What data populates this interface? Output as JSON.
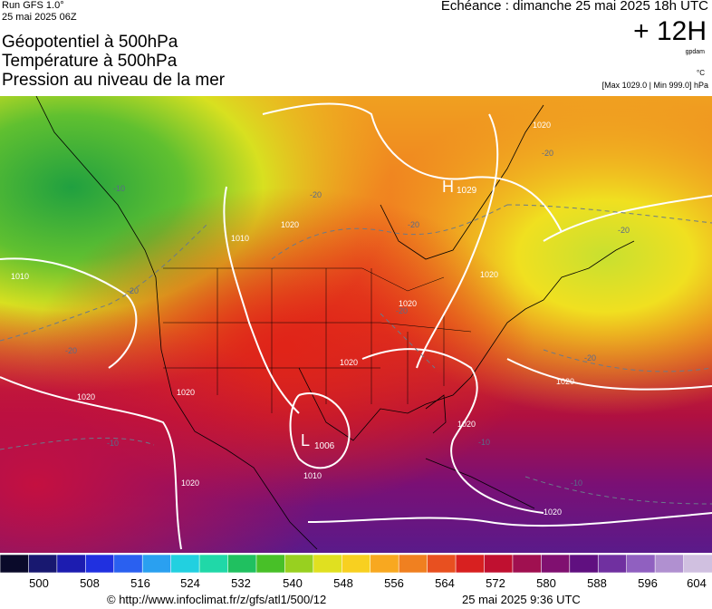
{
  "header": {
    "run": "Run GFS 1.0°",
    "run_time": "25 mai 2025 06Z",
    "titles": [
      "Géopotentiel à 500hPa",
      "Température à 500hPa",
      "Pression au niveau de la mer"
    ],
    "validity": "Echéance : dimanche 25 mai 2025 18h UTC",
    "lead": "+ 12H",
    "unit_geo": "gpdam",
    "unit_temp": "°C",
    "range": "[Max 1029.0 | Min 999.0] hPa"
  },
  "map": {
    "isobar_labels": [
      "1010",
      "1020",
      "1020",
      "1010",
      "1020",
      "1020",
      "1020",
      "1020",
      "1010",
      "1020",
      "1020",
      "1020",
      "1020",
      "1020"
    ],
    "isotherm_labels": [
      "-10",
      "-20",
      "-20",
      "-20",
      "-20",
      "-20",
      "-20",
      "-20",
      "-20",
      "-10",
      "-10",
      "-10"
    ],
    "high": {
      "symbol": "H",
      "value": "1029"
    },
    "low": {
      "symbol": "L",
      "value": "1006"
    }
  },
  "legend": {
    "ticks": [
      "500",
      "508",
      "516",
      "524",
      "532",
      "540",
      "548",
      "556",
      "564",
      "572",
      "580",
      "588",
      "596",
      "604"
    ],
    "colors": [
      "#0a0a2a",
      "#181870",
      "#1c1cb0",
      "#2030e0",
      "#2a60f0",
      "#2aa0f0",
      "#22d0e0",
      "#20d8a8",
      "#20c060",
      "#48c028",
      "#98d020",
      "#e0e020",
      "#f8d020",
      "#f8a820",
      "#f08020",
      "#e85020",
      "#d82020",
      "#c01030",
      "#a01050",
      "#801070",
      "#601080",
      "#7030a0",
      "#9060c0",
      "#b090d0",
      "#d0c0e0"
    ]
  },
  "footer": {
    "credit": "© http://www.infoclimat.fr/z/gfs/atl1/500/12",
    "timestamp": "25 mai 2025  9:36 UTC"
  }
}
